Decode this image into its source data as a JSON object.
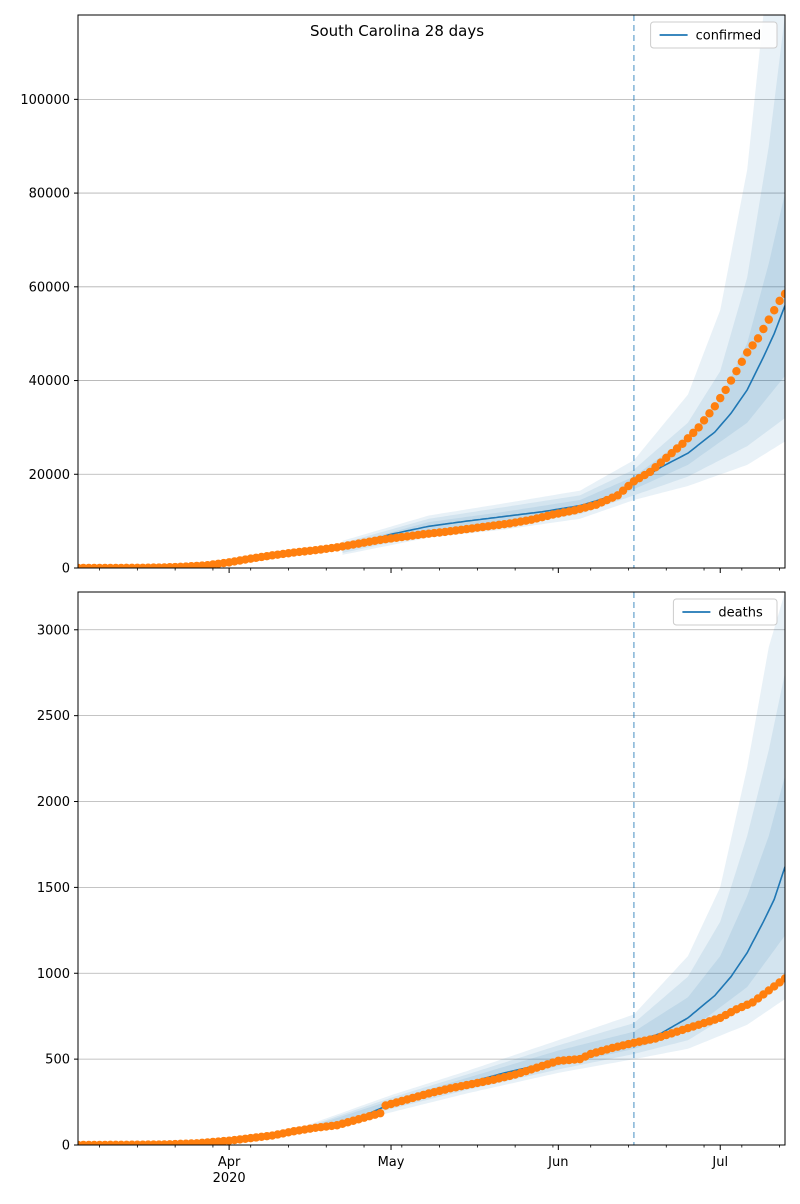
{
  "figure": {
    "suptitle": "South Carolina 28 days"
  },
  "chart_data": [
    {
      "type": "line",
      "name": "confirmed",
      "title": "South Carolina 28 days",
      "legend": {
        "position": "top-right",
        "label": "confirmed"
      },
      "xlabel": "",
      "ylabel": "",
      "x_ticks": [
        {
          "x": "2020-04-01",
          "label": "Apr",
          "sublabel": "2020"
        },
        {
          "x": "2020-05-01",
          "label": "May"
        },
        {
          "x": "2020-06-01",
          "label": "Jun"
        },
        {
          "x": "2020-07-01",
          "label": "Jul"
        }
      ],
      "x_ticklabels_visible": false,
      "xlim": [
        "2020-03-04",
        "2020-07-13"
      ],
      "ylim": [
        0,
        118000
      ],
      "y_ticks": [
        0,
        20000,
        40000,
        60000,
        80000,
        100000
      ],
      "grid": "horizontal",
      "forecast_start": "2020-06-15",
      "colors": {
        "model": "#1f77b4",
        "observed": "#ff7f0e",
        "band": "#1f77b4",
        "vline": "#1f77b4"
      },
      "model_line": [
        [
          "2020-04-22",
          4200
        ],
        [
          "2020-05-01",
          7200
        ],
        [
          "2020-05-08",
          8900
        ],
        [
          "2020-05-15",
          10000
        ],
        [
          "2020-05-22",
          11000
        ],
        [
          "2020-05-29",
          12000
        ],
        [
          "2020-06-05",
          13300
        ],
        [
          "2020-06-12",
          15700
        ],
        [
          "2020-06-15",
          18000
        ],
        [
          "2020-06-20",
          21500
        ],
        [
          "2020-06-25",
          24500
        ],
        [
          "2020-06-30",
          29000
        ],
        [
          "2020-07-03",
          33000
        ],
        [
          "2020-07-06",
          38000
        ],
        [
          "2020-07-09",
          45000
        ],
        [
          "2020-07-11",
          50000
        ],
        [
          "2020-07-13",
          56000
        ]
      ],
      "bands": [
        {
          "lower": [
            [
              "2020-04-22",
              2800
            ],
            [
              "2020-05-08",
              6500
            ],
            [
              "2020-05-22",
              8200
            ],
            [
              "2020-06-05",
              10500
            ],
            [
              "2020-06-15",
              14500
            ],
            [
              "2020-06-25",
              17500
            ],
            [
              "2020-07-06",
              22000
            ],
            [
              "2020-07-13",
              27000
            ]
          ],
          "upper": [
            [
              "2020-04-22",
              5800
            ],
            [
              "2020-05-08",
              11200
            ],
            [
              "2020-05-22",
              13800
            ],
            [
              "2020-06-05",
              16500
            ],
            [
              "2020-06-15",
              23000
            ],
            [
              "2020-06-25",
              37000
            ],
            [
              "2020-07-01",
              55000
            ],
            [
              "2020-07-06",
              85000
            ],
            [
              "2020-07-09",
              118000
            ],
            [
              "2020-07-13",
              118000
            ]
          ]
        },
        {
          "lower": [
            [
              "2020-04-22",
              3200
            ],
            [
              "2020-05-08",
              7200
            ],
            [
              "2020-05-22",
              9000
            ],
            [
              "2020-06-05",
              11500
            ],
            [
              "2020-06-15",
              15500
            ],
            [
              "2020-06-25",
              19500
            ],
            [
              "2020-07-06",
              26000
            ],
            [
              "2020-07-13",
              32000
            ]
          ],
          "upper": [
            [
              "2020-04-22",
              5300
            ],
            [
              "2020-05-08",
              10500
            ],
            [
              "2020-05-22",
              13000
            ],
            [
              "2020-06-05",
              15500
            ],
            [
              "2020-06-15",
              21000
            ],
            [
              "2020-06-25",
              31000
            ],
            [
              "2020-07-01",
              42000
            ],
            [
              "2020-07-06",
              62000
            ],
            [
              "2020-07-10",
              90000
            ],
            [
              "2020-07-13",
              118000
            ]
          ]
        },
        {
          "lower": [
            [
              "2020-04-22",
              3700
            ],
            [
              "2020-05-08",
              8000
            ],
            [
              "2020-05-22",
              10000
            ],
            [
              "2020-06-05",
              12500
            ],
            [
              "2020-06-15",
              16800
            ],
            [
              "2020-06-25",
              22000
            ],
            [
              "2020-07-06",
              31000
            ],
            [
              "2020-07-13",
              41000
            ]
          ],
          "upper": [
            [
              "2020-04-22",
              4800
            ],
            [
              "2020-05-08",
              9800
            ],
            [
              "2020-05-22",
              12000
            ],
            [
              "2020-06-05",
              14500
            ],
            [
              "2020-06-15",
              19500
            ],
            [
              "2020-06-25",
              28000
            ],
            [
              "2020-07-01",
              36000
            ],
            [
              "2020-07-06",
              48000
            ],
            [
              "2020-07-10",
              65000
            ],
            [
              "2020-07-13",
              80000
            ]
          ]
        }
      ],
      "observed": [
        [
          "2020-03-04",
          0
        ],
        [
          "2020-03-08",
          10
        ],
        [
          "2020-03-12",
          20
        ],
        [
          "2020-03-16",
          50
        ],
        [
          "2020-03-20",
          120
        ],
        [
          "2020-03-24",
          300
        ],
        [
          "2020-03-28",
          600
        ],
        [
          "2020-04-01",
          1200
        ],
        [
          "2020-04-05",
          2000
        ],
        [
          "2020-04-09",
          2700
        ],
        [
          "2020-04-13",
          3300
        ],
        [
          "2020-04-17",
          3800
        ],
        [
          "2020-04-21",
          4400
        ],
        [
          "2020-04-25",
          5200
        ],
        [
          "2020-04-29",
          6000
        ],
        [
          "2020-05-03",
          6600
        ],
        [
          "2020-05-07",
          7200
        ],
        [
          "2020-05-11",
          7700
        ],
        [
          "2020-05-15",
          8300
        ],
        [
          "2020-05-19",
          8900
        ],
        [
          "2020-05-23",
          9500
        ],
        [
          "2020-05-27",
          10300
        ],
        [
          "2020-05-31",
          11400
        ],
        [
          "2020-06-04",
          12300
        ],
        [
          "2020-06-08",
          13500
        ],
        [
          "2020-06-12",
          15500
        ],
        [
          "2020-06-15",
          18500
        ],
        [
          "2020-06-18",
          20500
        ],
        [
          "2020-06-21",
          23500
        ],
        [
          "2020-06-24",
          26500
        ],
        [
          "2020-06-27",
          30000
        ],
        [
          "2020-06-30",
          34500
        ],
        [
          "2020-07-02",
          38000
        ],
        [
          "2020-07-04",
          42000
        ],
        [
          "2020-07-06",
          46000
        ],
        [
          "2020-07-08",
          49000
        ],
        [
          "2020-07-10",
          53000
        ],
        [
          "2020-07-12",
          57000
        ],
        [
          "2020-07-13",
          58500
        ]
      ]
    },
    {
      "type": "line",
      "name": "deaths",
      "title": "",
      "legend": {
        "position": "top-right",
        "label": "deaths"
      },
      "xlabel": "",
      "ylabel": "",
      "x_ticks": [
        {
          "x": "2020-04-01",
          "label": "Apr",
          "sublabel": "2020"
        },
        {
          "x": "2020-05-01",
          "label": "May"
        },
        {
          "x": "2020-06-01",
          "label": "Jun"
        },
        {
          "x": "2020-07-01",
          "label": "Jul"
        }
      ],
      "x_ticklabels_visible": true,
      "xlim": [
        "2020-03-04",
        "2020-07-13"
      ],
      "ylim": [
        0,
        3220
      ],
      "y_ticks": [
        0,
        500,
        1000,
        1500,
        2000,
        2500,
        3000
      ],
      "grid": "horizontal",
      "forecast_start": "2020-06-15",
      "colors": {
        "model": "#1f77b4",
        "observed": "#ff7f0e",
        "band": "#1f77b4",
        "vline": "#1f77b4"
      },
      "model_line": [
        [
          "2020-04-22",
          115
        ],
        [
          "2020-05-01",
          240
        ],
        [
          "2020-05-08",
          300
        ],
        [
          "2020-05-15",
          360
        ],
        [
          "2020-05-22",
          420
        ],
        [
          "2020-05-29",
          470
        ],
        [
          "2020-06-05",
          510
        ],
        [
          "2020-06-12",
          570
        ],
        [
          "2020-06-15",
          600
        ],
        [
          "2020-06-20",
          650
        ],
        [
          "2020-06-25",
          740
        ],
        [
          "2020-06-30",
          870
        ],
        [
          "2020-07-03",
          980
        ],
        [
          "2020-07-06",
          1120
        ],
        [
          "2020-07-09",
          1300
        ],
        [
          "2020-07-11",
          1430
        ],
        [
          "2020-07-13",
          1620
        ]
      ],
      "bands": [
        {
          "lower": [
            [
              "2020-04-15",
              70
            ],
            [
              "2020-05-01",
              190
            ],
            [
              "2020-05-15",
              300
            ],
            [
              "2020-06-01",
              420
            ],
            [
              "2020-06-15",
              500
            ],
            [
              "2020-06-25",
              560
            ],
            [
              "2020-07-06",
              700
            ],
            [
              "2020-07-13",
              850
            ]
          ],
          "upper": [
            [
              "2020-04-15",
              110
            ],
            [
              "2020-05-01",
              290
            ],
            [
              "2020-05-15",
              430
            ],
            [
              "2020-06-01",
              610
            ],
            [
              "2020-06-15",
              760
            ],
            [
              "2020-06-25",
              1100
            ],
            [
              "2020-07-01",
              1500
            ],
            [
              "2020-07-06",
              2200
            ],
            [
              "2020-07-10",
              2900
            ],
            [
              "2020-07-13",
              3220
            ]
          ]
        },
        {
          "lower": [
            [
              "2020-04-15",
              78
            ],
            [
              "2020-05-01",
              210
            ],
            [
              "2020-05-15",
              320
            ],
            [
              "2020-06-01",
              440
            ],
            [
              "2020-06-15",
              530
            ],
            [
              "2020-06-25",
              610
            ],
            [
              "2020-07-06",
              820
            ],
            [
              "2020-07-13",
              1000
            ]
          ],
          "upper": [
            [
              "2020-04-15",
              102
            ],
            [
              "2020-05-01",
              275
            ],
            [
              "2020-05-15",
              410
            ],
            [
              "2020-06-01",
              580
            ],
            [
              "2020-06-15",
              710
            ],
            [
              "2020-06-25",
              980
            ],
            [
              "2020-07-01",
              1300
            ],
            [
              "2020-07-06",
              1800
            ],
            [
              "2020-07-10",
              2300
            ],
            [
              "2020-07-13",
              2750
            ]
          ]
        },
        {
          "lower": [
            [
              "2020-04-15",
              84
            ],
            [
              "2020-05-01",
              225
            ],
            [
              "2020-05-15",
              340
            ],
            [
              "2020-06-01",
              460
            ],
            [
              "2020-06-15",
              560
            ],
            [
              "2020-06-25",
              660
            ],
            [
              "2020-07-06",
              920
            ],
            [
              "2020-07-13",
              1220
            ]
          ],
          "upper": [
            [
              "2020-04-15",
              96
            ],
            [
              "2020-05-01",
              260
            ],
            [
              "2020-05-15",
              390
            ],
            [
              "2020-06-01",
              550
            ],
            [
              "2020-06-15",
              660
            ],
            [
              "2020-06-25",
              860
            ],
            [
              "2020-07-01",
              1100
            ],
            [
              "2020-07-06",
              1450
            ],
            [
              "2020-07-10",
              1800
            ],
            [
              "2020-07-13",
              2150
            ]
          ]
        }
      ],
      "observed": [
        [
          "2020-03-04",
          0
        ],
        [
          "2020-03-12",
          1
        ],
        [
          "2020-03-20",
          3
        ],
        [
          "2020-03-26",
          10
        ],
        [
          "2020-04-01",
          25
        ],
        [
          "2020-04-05",
          40
        ],
        [
          "2020-04-09",
          55
        ],
        [
          "2020-04-13",
          80
        ],
        [
          "2020-04-17",
          100
        ],
        [
          "2020-04-21",
          115
        ],
        [
          "2020-04-25",
          150
        ],
        [
          "2020-04-29",
          185
        ],
        [
          "2020-04-30",
          230
        ],
        [
          "2020-05-04",
          265
        ],
        [
          "2020-05-08",
          300
        ],
        [
          "2020-05-12",
          330
        ],
        [
          "2020-05-16",
          355
        ],
        [
          "2020-05-20",
          380
        ],
        [
          "2020-05-24",
          410
        ],
        [
          "2020-05-28",
          450
        ],
        [
          "2020-06-01",
          490
        ],
        [
          "2020-06-05",
          500
        ],
        [
          "2020-06-07",
          530
        ],
        [
          "2020-06-11",
          565
        ],
        [
          "2020-06-15",
          595
        ],
        [
          "2020-06-19",
          620
        ],
        [
          "2020-06-23",
          660
        ],
        [
          "2020-06-27",
          700
        ],
        [
          "2020-07-01",
          740
        ],
        [
          "2020-07-04",
          790
        ],
        [
          "2020-07-07",
          830
        ],
        [
          "2020-07-10",
          900
        ],
        [
          "2020-07-13",
          970
        ]
      ]
    }
  ]
}
